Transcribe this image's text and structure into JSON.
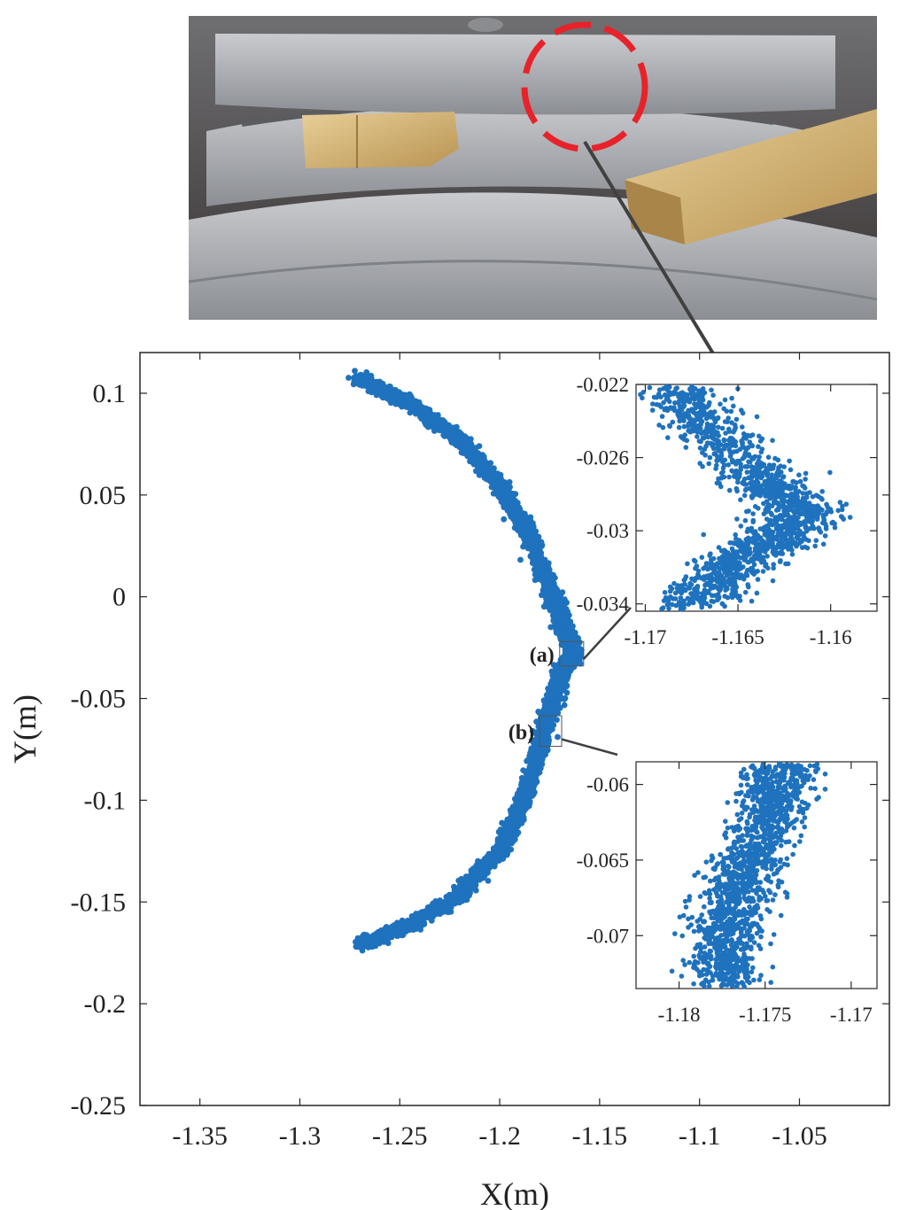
{
  "photo": {
    "marker_color": "#e8222a",
    "description_icon": "photo-icon"
  },
  "chart_data": [
    {
      "name": "main",
      "type": "scatter",
      "xlabel": "X(m)",
      "ylabel": "Y(m)",
      "xlim": [
        -1.38,
        -1.005
      ],
      "ylim": [
        -0.25,
        0.12
      ],
      "xticks": [
        -1.35,
        -1.3,
        -1.25,
        -1.2,
        -1.15,
        -1.1,
        -1.05
      ],
      "xtick_labels": [
        "-1.35",
        "-1.3",
        "-1.25",
        "-1.2",
        "-1.15",
        "-1.1",
        "-1.05"
      ],
      "yticks": [
        0.1,
        0.05,
        0,
        -0.05,
        -0.1,
        -0.15,
        -0.2,
        -0.25
      ],
      "ytick_labels": [
        "0.1",
        "0.05",
        "0",
        "-0.05",
        "-0.1",
        "-0.15",
        "-0.2",
        "-0.25"
      ],
      "series_color": "#1f72bd",
      "trace": [
        {
          "x": -1.271,
          "y": 0.108
        },
        {
          "x": -1.245,
          "y": 0.095
        },
        {
          "x": -1.22,
          "y": 0.077
        },
        {
          "x": -1.2,
          "y": 0.055
        },
        {
          "x": -1.185,
          "y": 0.03
        },
        {
          "x": -1.175,
          "y": 0.005
        },
        {
          "x": -1.168,
          "y": -0.015
        },
        {
          "x": -1.162,
          "y": -0.028
        },
        {
          "x": -1.168,
          "y": -0.035
        },
        {
          "x": -1.175,
          "y": -0.055
        },
        {
          "x": -1.18,
          "y": -0.075
        },
        {
          "x": -1.188,
          "y": -0.1
        },
        {
          "x": -1.2,
          "y": -0.125
        },
        {
          "x": -1.222,
          "y": -0.148
        },
        {
          "x": -1.248,
          "y": -0.163
        },
        {
          "x": -1.27,
          "y": -0.171
        }
      ],
      "annotations": [
        {
          "label": "(a)",
          "xlim": [
            -1.17,
            -1.158
          ],
          "ylim": [
            -0.034,
            -0.022
          ]
        },
        {
          "label": "(b)",
          "xlim": [
            -1.18,
            -1.169
          ],
          "ylim": [
            -0.0735,
            -0.0585
          ]
        }
      ]
    },
    {
      "name": "inset-a",
      "type": "scatter",
      "xlim": [
        -1.1705,
        -1.1575
      ],
      "ylim": [
        -0.0344,
        -0.022
      ],
      "xticks": [
        -1.17,
        -1.165,
        -1.16
      ],
      "xtick_labels": [
        "-1.17",
        "-1.165",
        "-1.16"
      ],
      "yticks": [
        -0.022,
        -0.026,
        -0.03,
        -0.034
      ],
      "ytick_labels": [
        "-0.022",
        "-0.026",
        "-0.03",
        "-0.034"
      ],
      "trace": [
        {
          "x": -1.1685,
          "y": -0.022
        },
        {
          "x": -1.1665,
          "y": -0.0245
        },
        {
          "x": -1.1635,
          "y": -0.0275
        },
        {
          "x": -1.1615,
          "y": -0.029
        },
        {
          "x": -1.163,
          "y": -0.0305
        },
        {
          "x": -1.1655,
          "y": -0.032
        },
        {
          "x": -1.1675,
          "y": -0.034
        }
      ]
    },
    {
      "name": "inset-b",
      "type": "scatter",
      "xlim": [
        -1.1825,
        -1.1685
      ],
      "ylim": [
        -0.0735,
        -0.0585
      ],
      "xticks": [
        -1.18,
        -1.175,
        -1.17
      ],
      "xtick_labels": [
        "-1.18",
        "-1.175",
        "-1.17"
      ],
      "yticks": [
        -0.06,
        -0.065,
        -0.07
      ],
      "ytick_labels": [
        "-0.06",
        "-0.065",
        "-0.07"
      ],
      "trace": [
        {
          "x": -1.1738,
          "y": -0.0585
        },
        {
          "x": -1.1748,
          "y": -0.062
        },
        {
          "x": -1.1762,
          "y": -0.066
        },
        {
          "x": -1.1772,
          "y": -0.0695
        },
        {
          "x": -1.1775,
          "y": -0.0735
        }
      ]
    }
  ]
}
